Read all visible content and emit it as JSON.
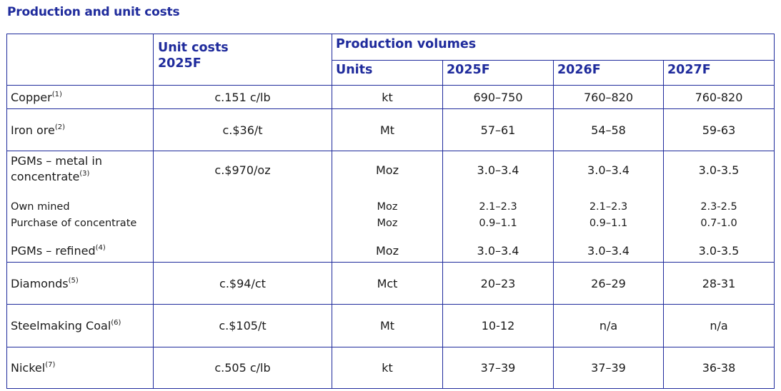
{
  "title": "Production and unit costs",
  "colors": {
    "brand": "#1f2b9c"
  },
  "headers": {
    "unit_costs": "Unit costs",
    "unit_costs_year": "2025F",
    "production_volumes": "Production volumes",
    "units": "Units",
    "years": [
      "2025F",
      "2026F",
      "2027F"
    ]
  },
  "rows": {
    "copper": {
      "label": "Copper",
      "note": "(1)",
      "cost": "c.151 c/lb",
      "units": "kt",
      "v": [
        "690–750",
        "760–820",
        "760-820"
      ]
    },
    "iron": {
      "label": "Iron ore",
      "note": "(2)",
      "cost": "c.$36/t",
      "units": "Mt",
      "v": [
        "57–61",
        "54–58",
        "59-63"
      ]
    },
    "pgms": {
      "label_line1": "PGMs – metal in",
      "label_line2": "concentrate",
      "note": "(3)",
      "cost": "c.$970/oz",
      "units": "Moz",
      "v": [
        "3.0–3.4",
        "3.0–3.4",
        "3.0-3.5"
      ],
      "own_mined": {
        "label": "Own mined",
        "units": "Moz",
        "v": [
          "2.1–2.3",
          "2.1–2.3",
          "2.3-2.5"
        ]
      },
      "purchase": {
        "label": "Purchase of concentrate",
        "units": "Moz",
        "v": [
          "0.9–1.1",
          "0.9–1.1",
          "0.7-1.0"
        ]
      },
      "refined": {
        "label": "PGMs – refined",
        "note": "(4)",
        "units": "Moz",
        "v": [
          "3.0–3.4",
          "3.0–3.4",
          "3.0-3.5"
        ]
      }
    },
    "diamonds": {
      "label": "Diamonds",
      "note": "(5)",
      "cost": "c.$94/ct",
      "units": "Mct",
      "v": [
        "20–23",
        "26–29",
        "28-31"
      ]
    },
    "coal": {
      "label": "Steelmaking Coal",
      "note": "(6)",
      "cost": "c.$105/t",
      "units": "Mt",
      "v": [
        "10-12",
        "n/a",
        "n/a"
      ]
    },
    "nickel": {
      "label": "Nickel",
      "note": "(7)",
      "cost": "c.505 c/lb",
      "units": "kt",
      "v": [
        "37–39",
        "37–39",
        "36-38"
      ]
    }
  }
}
